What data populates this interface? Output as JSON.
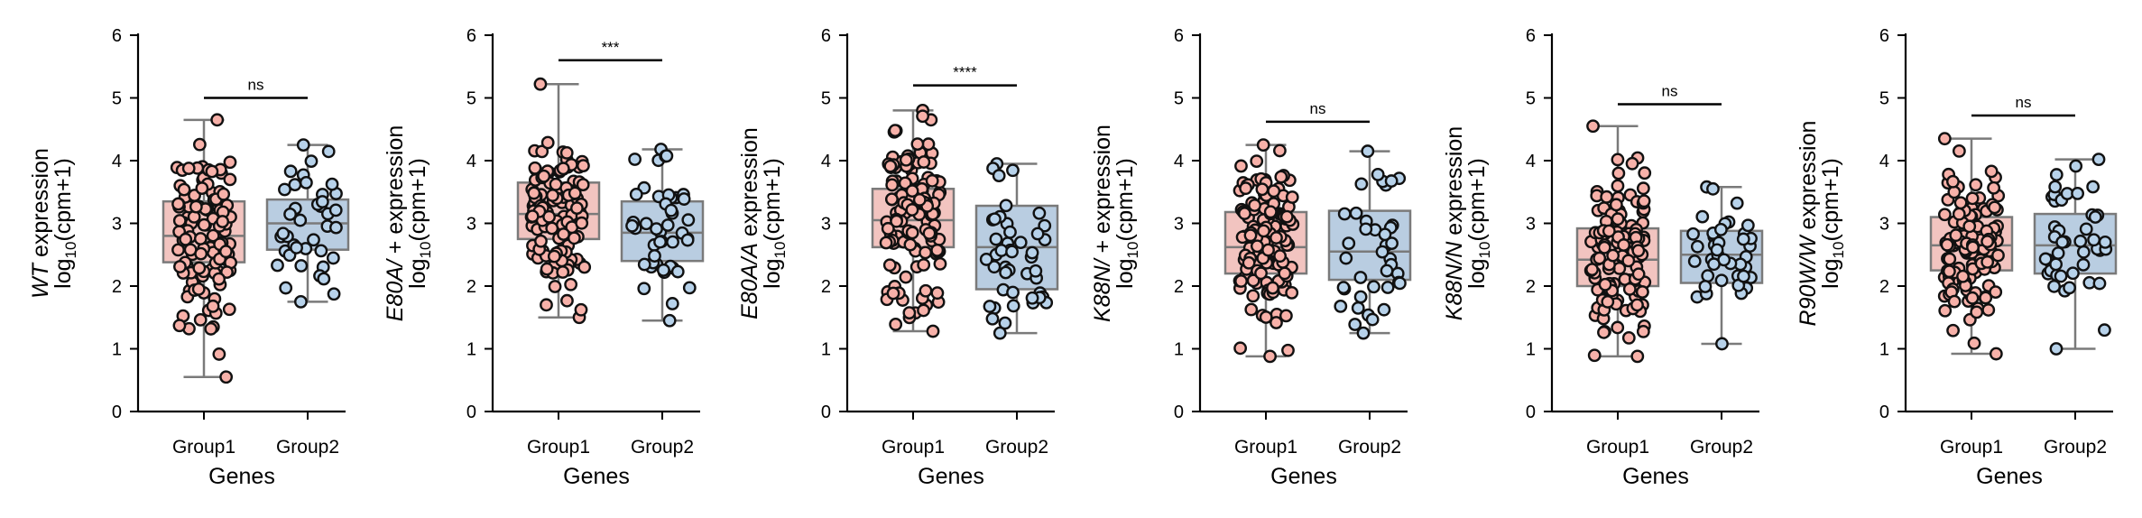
{
  "figure": {
    "colors": {
      "group1_fill": "#f2c4c0",
      "group2_fill": "#b9cde1",
      "group1_point": "#f7b1a9",
      "group2_point": "#b7d2ea",
      "box_edge": "#7a7a7a",
      "point_edge": "#111111"
    }
  },
  "chart_data": [
    {
      "type": "box",
      "ylabel_gene": "WT",
      "ylabel_suffix": " expression",
      "ylabel_unit": "log",
      "ylabel_sub": "10",
      "ylabel_rest": "(cpm+1)",
      "xlabel": "Genes",
      "categories": [
        "Group1",
        "Group2"
      ],
      "ylim": [
        0,
        6
      ],
      "yticks": [
        "0",
        "1",
        "2",
        "3",
        "4",
        "5",
        "6"
      ],
      "significance": "ns",
      "sig_y": 5.0,
      "series": [
        {
          "q1": 2.38,
          "median": 2.8,
          "q3": 3.35,
          "whisker_low": 0.55,
          "whisker_high": 4.65,
          "min": 0.55,
          "max": 4.65,
          "n": 120
        },
        {
          "q1": 2.58,
          "median": 3.0,
          "q3": 3.38,
          "whisker_low": 1.75,
          "whisker_high": 4.25,
          "min": 1.75,
          "max": 4.25,
          "n": 40
        }
      ]
    },
    {
      "type": "box",
      "ylabel_gene": "E80A/",
      "ylabel_suffix": " + expression",
      "ylabel_unit": "log",
      "ylabel_sub": "10",
      "ylabel_rest": "(cpm+1)",
      "xlabel": "Genes",
      "categories": [
        "Group1",
        "Group2"
      ],
      "ylim": [
        0,
        6
      ],
      "yticks": [
        "0",
        "1",
        "2",
        "3",
        "4",
        "5",
        "6"
      ],
      "significance": "***",
      "sig_y": 5.6,
      "series": [
        {
          "q1": 2.75,
          "median": 3.15,
          "q3": 3.65,
          "whisker_low": 1.5,
          "whisker_high": 5.22,
          "min": 1.5,
          "max": 5.22,
          "n": 130
        },
        {
          "q1": 2.4,
          "median": 2.85,
          "q3": 3.35,
          "whisker_low": 1.45,
          "whisker_high": 4.18,
          "min": 1.45,
          "max": 4.18,
          "n": 45
        }
      ]
    },
    {
      "type": "box",
      "ylabel_gene": "E80A/A",
      "ylabel_suffix": " expression",
      "ylabel_unit": "log",
      "ylabel_sub": "10",
      "ylabel_rest": "(cpm+1)",
      "xlabel": "Genes",
      "categories": [
        "Group1",
        "Group2"
      ],
      "ylim": [
        0,
        6
      ],
      "yticks": [
        "0",
        "1",
        "2",
        "3",
        "4",
        "5",
        "6"
      ],
      "significance": "****",
      "sig_y": 5.2,
      "series": [
        {
          "q1": 2.62,
          "median": 3.05,
          "q3": 3.55,
          "whisker_low": 1.28,
          "whisker_high": 4.8,
          "min": 1.28,
          "max": 4.8,
          "n": 130
        },
        {
          "q1": 1.95,
          "median": 2.62,
          "q3": 3.28,
          "whisker_low": 1.25,
          "whisker_high": 3.95,
          "min": 1.25,
          "max": 3.95,
          "n": 45
        }
      ]
    },
    {
      "type": "box",
      "ylabel_gene": "K88N/",
      "ylabel_suffix": " + expression",
      "ylabel_unit": "log",
      "ylabel_sub": "10",
      "ylabel_rest": "(cpm+1)",
      "xlabel": "Genes",
      "categories": [
        "Group1",
        "Group2"
      ],
      "ylim": [
        0,
        6
      ],
      "yticks": [
        "0",
        "1",
        "2",
        "3",
        "4",
        "5",
        "6"
      ],
      "significance": "ns",
      "sig_y": 4.62,
      "series": [
        {
          "q1": 2.2,
          "median": 2.62,
          "q3": 3.18,
          "whisker_low": 0.88,
          "whisker_high": 4.25,
          "min": 0.88,
          "max": 4.25,
          "n": 130
        },
        {
          "q1": 2.1,
          "median": 2.55,
          "q3": 3.2,
          "whisker_low": 1.25,
          "whisker_high": 4.15,
          "min": 1.25,
          "max": 4.15,
          "n": 40
        }
      ]
    },
    {
      "type": "box",
      "ylabel_gene": "K88N/N",
      "ylabel_suffix": " expression",
      "ylabel_unit": "log",
      "ylabel_sub": "10",
      "ylabel_rest": "(cpm+1)",
      "xlabel": "Genes",
      "categories": [
        "Group1",
        "Group2"
      ],
      "ylim": [
        0,
        6
      ],
      "yticks": [
        "0",
        "1",
        "2",
        "3",
        "4",
        "5",
        "6"
      ],
      "significance": "ns",
      "sig_y": 4.9,
      "series": [
        {
          "q1": 2.0,
          "median": 2.42,
          "q3": 2.92,
          "whisker_low": 0.88,
          "whisker_high": 4.55,
          "min": 0.88,
          "max": 4.55,
          "n": 130
        },
        {
          "q1": 2.05,
          "median": 2.5,
          "q3": 2.88,
          "whisker_low": 1.08,
          "whisker_high": 3.58,
          "min": 1.08,
          "max": 3.58,
          "n": 40
        }
      ]
    },
    {
      "type": "box",
      "ylabel_gene": "R90W/W",
      "ylabel_suffix": " expression",
      "ylabel_unit": "log",
      "ylabel_sub": "10",
      "ylabel_rest": "(cpm+1)",
      "xlabel": "Genes",
      "categories": [
        "Group1",
        "Group2"
      ],
      "ylim": [
        0,
        6
      ],
      "yticks": [
        "0",
        "1",
        "2",
        "3",
        "4",
        "5",
        "6"
      ],
      "significance": "ns",
      "sig_y": 4.72,
      "series": [
        {
          "q1": 2.25,
          "median": 2.65,
          "q3": 3.1,
          "whisker_low": 0.92,
          "whisker_high": 4.35,
          "min": 0.92,
          "max": 4.35,
          "n": 130
        },
        {
          "q1": 2.2,
          "median": 2.65,
          "q3": 3.15,
          "whisker_low": 1.0,
          "whisker_high": 4.02,
          "min": 1.0,
          "max": 4.02,
          "n": 45
        }
      ]
    }
  ]
}
